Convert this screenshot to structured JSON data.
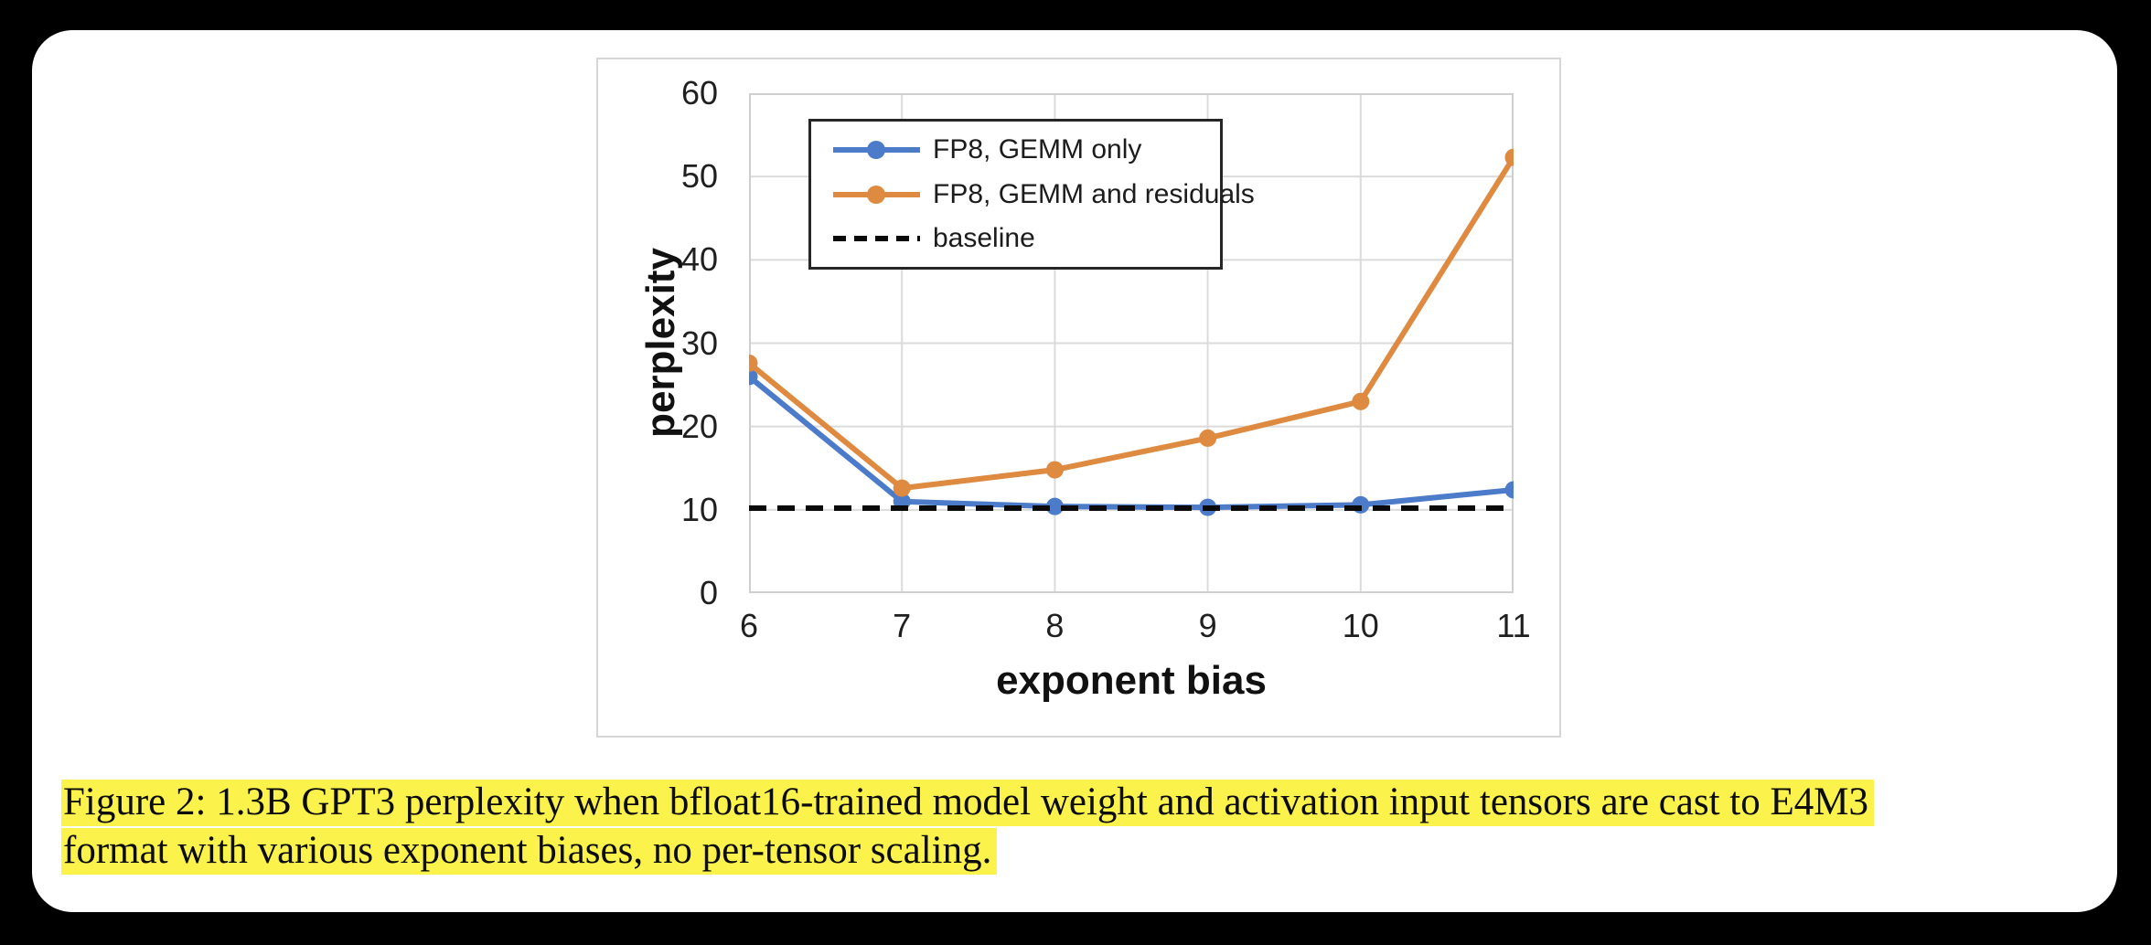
{
  "chart_data": {
    "type": "line",
    "title": "",
    "xlabel": "exponent bias",
    "ylabel": "perplexity",
    "x": [
      6,
      7,
      8,
      9,
      10,
      11
    ],
    "xticks": [
      6,
      7,
      8,
      9,
      10,
      11
    ],
    "yticks": [
      0,
      10,
      20,
      30,
      40,
      50,
      60
    ],
    "xlim": [
      6,
      11
    ],
    "ylim": [
      0,
      60
    ],
    "grid": true,
    "gridline_color": "#dbdbdb",
    "plot_border_color": "#cfcfcf",
    "legend_position": "top-left inside plot",
    "series": [
      {
        "name": "FP8, GEMM only",
        "type": "line",
        "marker": "circle",
        "color": "#4c7bc9",
        "values": [
          26.0,
          11.0,
          10.4,
          10.3,
          10.6,
          12.4
        ]
      },
      {
        "name": "FP8, GEMM and residuals",
        "type": "line",
        "marker": "circle",
        "color": "#de8a40",
        "values": [
          27.6,
          12.6,
          14.8,
          18.6,
          23.0,
          52.3
        ]
      },
      {
        "name": "baseline",
        "type": "hline",
        "style": "dashed",
        "color": "#0a0a0a",
        "value": 10.2
      }
    ]
  },
  "caption": {
    "line1": "Figure 2: 1.3B GPT3 perplexity when bfloat16-trained model weight and activation input tensors are cast to E4M3",
    "line2": "format with various exponent biases, no per-tensor scaling.",
    "highlight_color": "#fbf24c"
  }
}
